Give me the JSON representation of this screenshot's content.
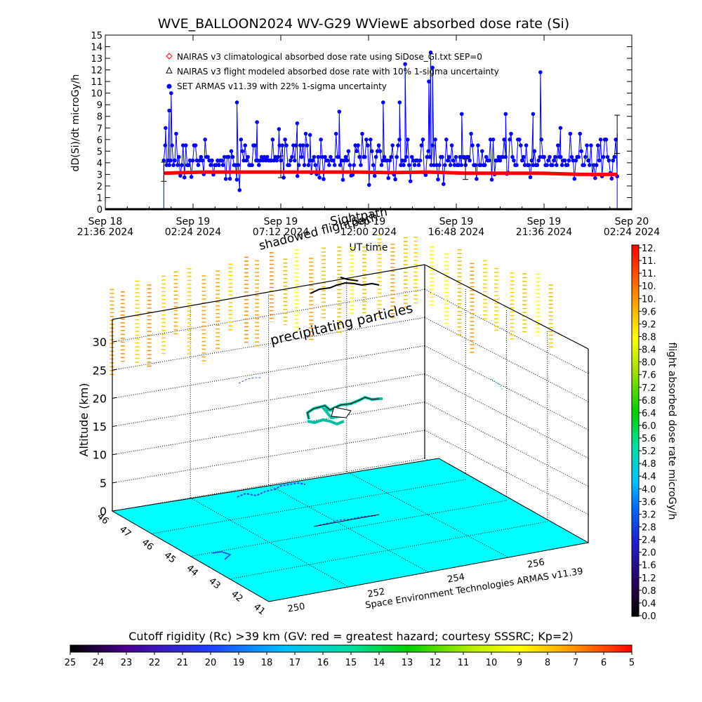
{
  "chart_data": [
    {
      "type": "scatter",
      "title": "WVE_BALLOON2024 WV-G29 WViewE absorbed dose rate (Si)",
      "ylabel": "dD(Si)/dt microGy/h",
      "xlabel": "UT time",
      "ylim": [
        0,
        15
      ],
      "yticks": [
        "0",
        "1",
        "2",
        "3",
        "4",
        "5",
        "6",
        "7",
        "8",
        "9",
        "10",
        "11",
        "12",
        "13",
        "14",
        "15"
      ],
      "xticks": [
        {
          "l1": "Sep 18",
          "l2": "21:36 2024"
        },
        {
          "l1": "Sep 19",
          "l2": "02:24 2024"
        },
        {
          "l1": "Sep 19",
          "l2": "07:12 2024"
        },
        {
          "l1": "Sep 19",
          "l2": "12:00 2024"
        },
        {
          "l1": "Sep 19",
          "l2": "16:48 2024"
        },
        {
          "l1": "Sep 19",
          "l2": "21:36 2024"
        },
        {
          "l1": "Sep 20",
          "l2": "02:24 2024"
        }
      ],
      "xlim_hours": [
        0,
        28.8
      ],
      "legend_position": "top-left",
      "legend": [
        {
          "symbol": "diamond",
          "color": "#ff0000",
          "text": "NAIRAS v3 climatological absorbed dose rate using SiDose_GI.txt SEP=0"
        },
        {
          "symbol": "triangle",
          "color": "#000000",
          "text": "NAIRAS v3 flight modeled absorbed dose rate with 10% 1-sigma uncertainty"
        },
        {
          "symbol": "circle",
          "color": "#0000ff",
          "text": "SET ARMAS v11.39 with 22% 1-sigma uncertainty"
        }
      ],
      "series_nairas_climatological": {
        "color": "#ff0000",
        "start_hours": 3.2,
        "end_hours": 28.0,
        "values": [
          3.1,
          3.2,
          3.2,
          3.2,
          3.2,
          3.2,
          3.15,
          3.2,
          3.1,
          3.1,
          3.1,
          3.0,
          3.0
        ]
      },
      "series_armas": {
        "color": "#0000ff",
        "start_hours": 3.2,
        "end_hours": 28.0,
        "baseline": [
          3.8,
          4.2,
          4.5
        ],
        "spikes": [
          {
            "h": 3.5,
            "v": 8.5
          },
          {
            "h": 3.6,
            "v": 10.0
          },
          {
            "h": 3.3,
            "v": 7.0
          },
          {
            "h": 7.2,
            "v": 9.2
          },
          {
            "h": 8.3,
            "v": 7.5
          },
          {
            "h": 10.5,
            "v": 7.4
          },
          {
            "h": 12.8,
            "v": 8.4
          },
          {
            "h": 15.2,
            "v": 9.2
          },
          {
            "h": 16.1,
            "v": 9.2
          },
          {
            "h": 16.4,
            "v": 12.5
          },
          {
            "h": 17.7,
            "v": 11.0
          },
          {
            "h": 17.8,
            "v": 13.5
          },
          {
            "h": 17.9,
            "v": 12.2
          },
          {
            "h": 19.5,
            "v": 8.2
          },
          {
            "h": 21.9,
            "v": 8.2
          },
          {
            "h": 23.8,
            "v": 11.8
          },
          {
            "h": 23.4,
            "v": 8.2
          },
          {
            "h": 24.9,
            "v": 7.0
          },
          {
            "h": 9.5,
            "v": 6.9
          },
          {
            "h": 11.2,
            "v": 6.4
          }
        ]
      },
      "series_nairas_flight": {
        "color": "#000000",
        "errorbar_hours": [
          3.2,
          9.6,
          19.7,
          28.0
        ],
        "errorbar_values": [
          3.0,
          3.4,
          3.2,
          6.0
        ]
      }
    },
    {
      "type": "3d-trajectory",
      "zlabel": "Altitude (km)",
      "zticks": [
        "0",
        "5",
        "10",
        "15",
        "20",
        "25",
        "30"
      ],
      "zlim": [
        0,
        34
      ],
      "lat_ticks": [
        "46",
        "47",
        "46",
        "45",
        "44",
        "43",
        "42",
        "41"
      ],
      "lon_ticks": [
        "250",
        "252",
        "254",
        "256"
      ],
      "credit": "Space Environment Technologies ARMAS v11.39",
      "annotations": [
        "precipitating particles",
        "shadowed flightpath",
        "Sightpath"
      ],
      "ground_color": "#00ffff"
    }
  ],
  "colorbar_dose": {
    "label": "flight absorbed dose rate microGy/h",
    "ticks": [
      "0.0",
      "0.4",
      "0.8",
      "1.2",
      "1.6",
      "2.0",
      "2.4",
      "2.8",
      "3.2",
      "3.6",
      "4.0",
      "4.4",
      "4.8",
      "5.2",
      "5.6",
      "6.0",
      "6.4",
      "6.8",
      "7.2",
      "7.6",
      "8.0",
      "8.4",
      "8.8",
      "9.2",
      "9.6",
      "10.",
      "10.",
      "11.",
      "11.",
      "12."
    ]
  },
  "colorbar_rigidity": {
    "label": "Cutoff rigidity (Rc) >39 km (GV: red = greatest hazard; courtesy SSSRC; Kp=2)",
    "ticks": [
      "25",
      "24",
      "23",
      "22",
      "21",
      "20",
      "19",
      "18",
      "17",
      "16",
      "15",
      "14",
      "13",
      "12",
      "11",
      "10",
      "9",
      "8",
      "7",
      "6",
      "5"
    ]
  }
}
